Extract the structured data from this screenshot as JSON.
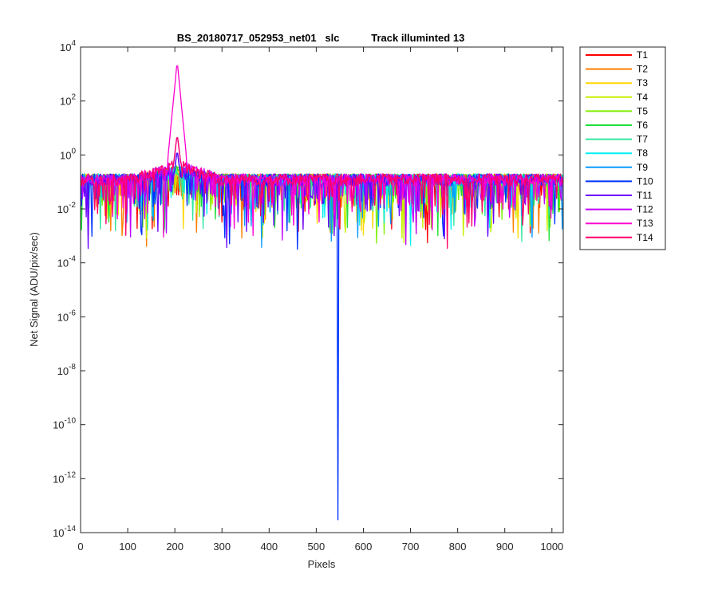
{
  "chart_data": {
    "type": "line",
    "title": "BS_20180717_052953_net01   slc           Track illuminted 13",
    "xlabel": "Pixels",
    "ylabel": "Net Signal (ADU/pix/sec)",
    "xlim": [
      0,
      1024
    ],
    "ylim": [
      1e-14,
      10000
    ],
    "yscale": "log",
    "xticks": [
      0,
      100,
      200,
      300,
      400,
      500,
      600,
      700,
      800,
      900,
      1000
    ],
    "xtick_labels": [
      "0",
      "100",
      "200",
      "300",
      "400",
      "500",
      "600",
      "700",
      "800",
      "900",
      "1000"
    ],
    "yticks": [
      -14,
      -12,
      -10,
      -8,
      -6,
      -4,
      -2,
      0,
      2,
      4
    ],
    "ytick_labels": [
      {
        "base": "10",
        "exp": "-14"
      },
      {
        "base": "10",
        "exp": "-12"
      },
      {
        "base": "10",
        "exp": "-10"
      },
      {
        "base": "10",
        "exp": "-8"
      },
      {
        "base": "10",
        "exp": "-6"
      },
      {
        "base": "10",
        "exp": "-4"
      },
      {
        "base": "10",
        "exp": "-2"
      },
      {
        "base": "10",
        "exp": "0"
      },
      {
        "base": "10",
        "exp": "2"
      },
      {
        "base": "10",
        "exp": "4"
      }
    ],
    "grid": false,
    "legend_position": "outside-right",
    "series": [
      {
        "name": "T1",
        "color": "#ff0000"
      },
      {
        "name": "T2",
        "color": "#ff7f00"
      },
      {
        "name": "T3",
        "color": "#ffd700"
      },
      {
        "name": "T4",
        "color": "#c8f000"
      },
      {
        "name": "T5",
        "color": "#7fef00"
      },
      {
        "name": "T6",
        "color": "#1fe03a"
      },
      {
        "name": "T7",
        "color": "#30e7a0"
      },
      {
        "name": "T8",
        "color": "#00f0f0"
      },
      {
        "name": "T9",
        "color": "#0a9cff"
      },
      {
        "name": "T10",
        "color": "#0033ff"
      },
      {
        "name": "T11",
        "color": "#6a00ff"
      },
      {
        "name": "T12",
        "color": "#c000ff"
      },
      {
        "name": "T13",
        "color": "#ff00d0"
      },
      {
        "name": "T14",
        "color": "#ff0066"
      }
    ],
    "features": {
      "baseline_level": 0.1,
      "peak": {
        "series": "T13",
        "x": 203,
        "y": 3000
      },
      "dip": {
        "series": "T10",
        "x": 546,
        "y": 3e-14
      }
    }
  }
}
